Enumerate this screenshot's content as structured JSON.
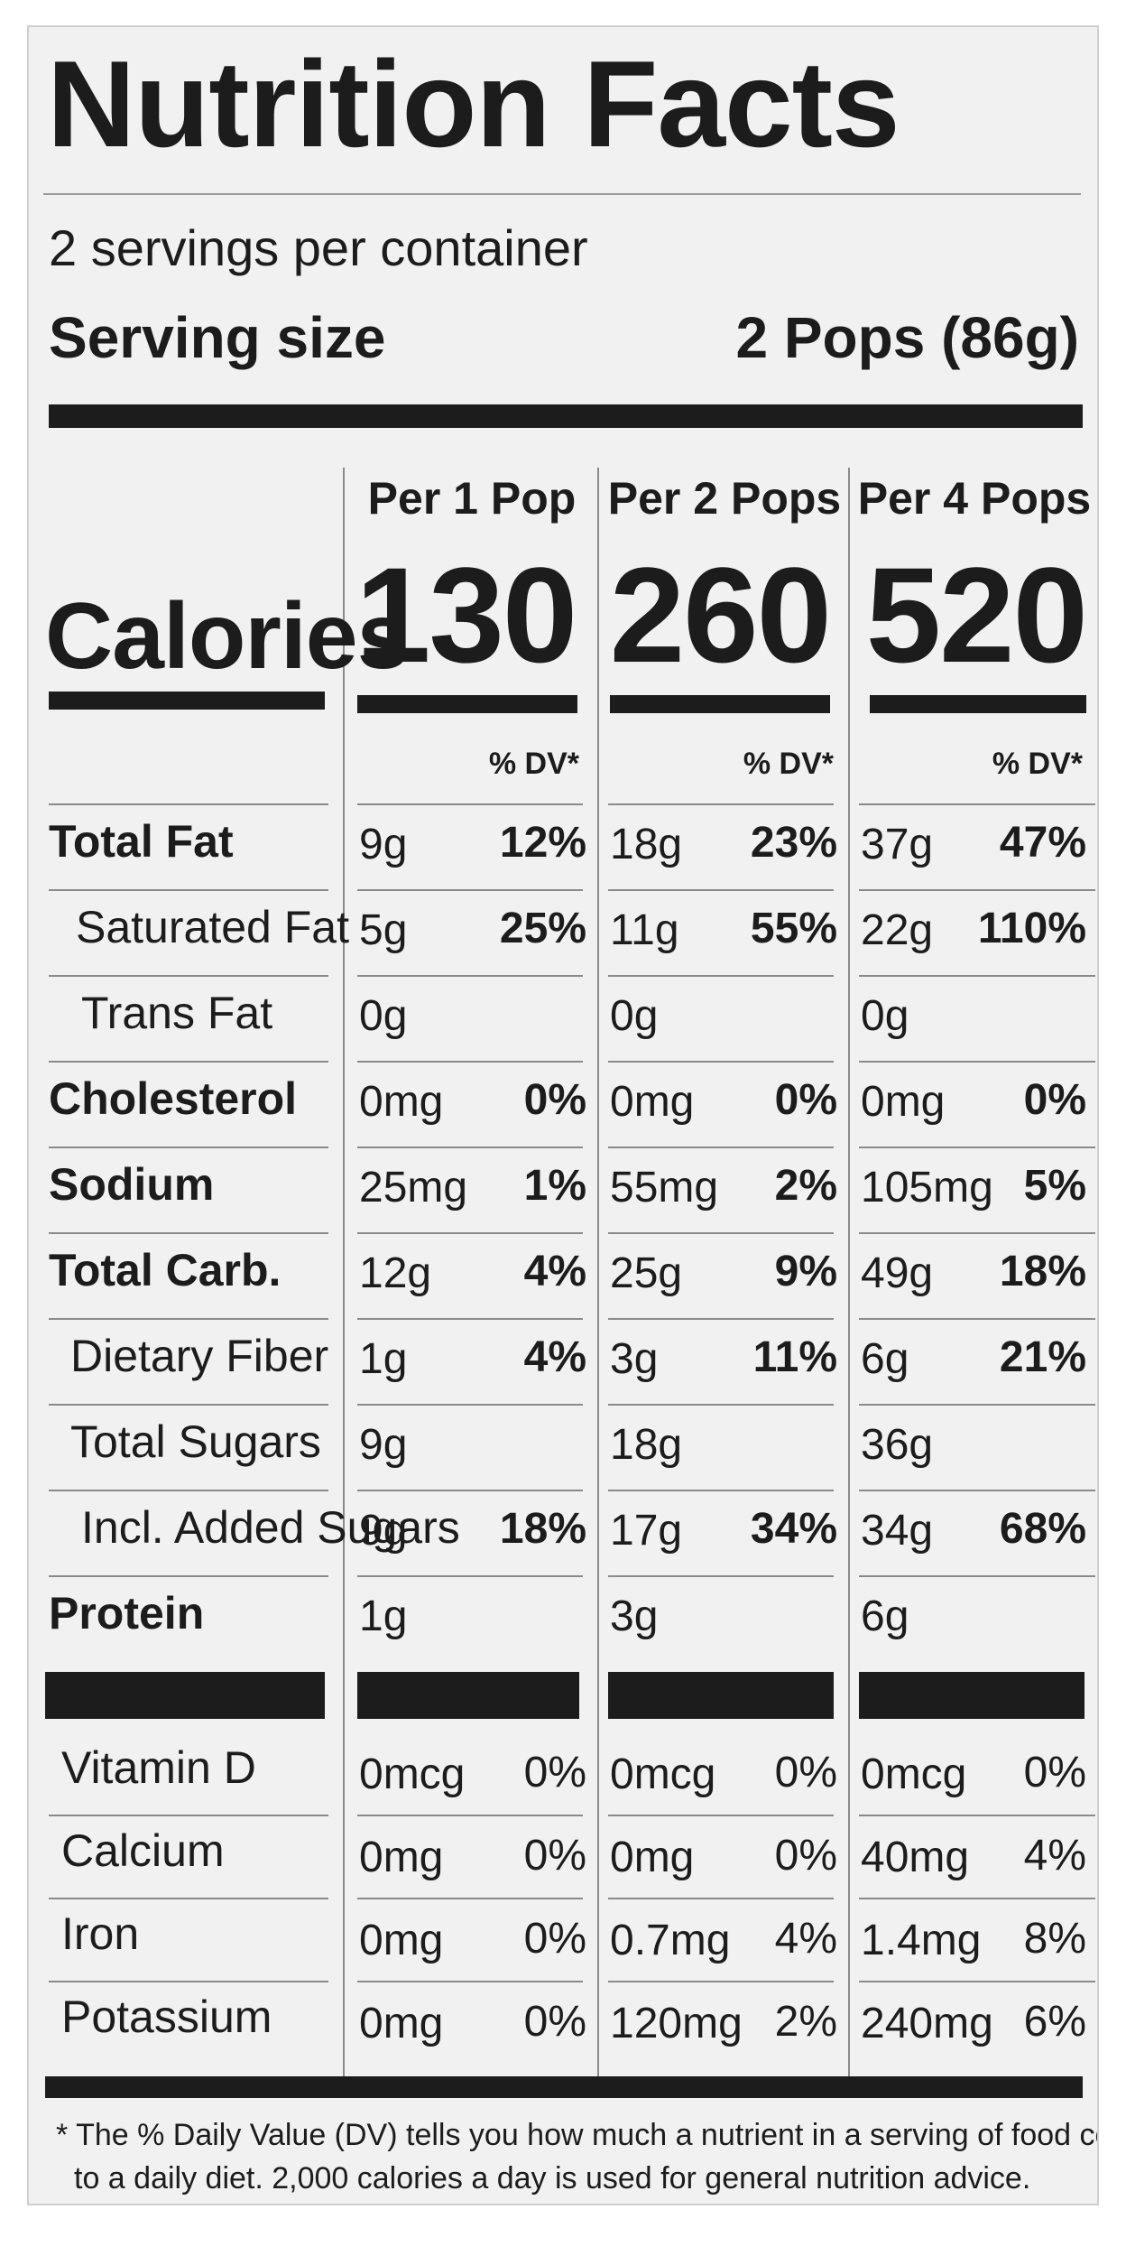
{
  "title": "Nutrition Facts",
  "servings_per_container": "2 servings per container",
  "serving_size": {
    "label": "Serving size",
    "value": "2 Pops (86g)"
  },
  "calories_label": "Calories",
  "columns": [
    {
      "header": "Per 1 Pop",
      "calories": "130",
      "dv_header": "% DV*"
    },
    {
      "header": "Per 2 Pops",
      "calories": "260",
      "dv_header": "% DV*"
    },
    {
      "header": "Per 4 Pops",
      "calories": "520",
      "dv_header": "% DV*"
    }
  ],
  "nutrients": [
    {
      "name": "Total Fat",
      "values": [
        {
          "amount": "9g",
          "dv": "12%"
        },
        {
          "amount": "18g",
          "dv": "23%"
        },
        {
          "amount": "37g",
          "dv": "47%"
        }
      ]
    },
    {
      "name": "Saturated Fat",
      "values": [
        {
          "amount": "5g",
          "dv": "25%"
        },
        {
          "amount": "11g",
          "dv": "55%"
        },
        {
          "amount": "22g",
          "dv": "110%"
        }
      ]
    },
    {
      "name": "Trans Fat",
      "values": [
        {
          "amount": "0g",
          "dv": ""
        },
        {
          "amount": "0g",
          "dv": ""
        },
        {
          "amount": "0g",
          "dv": ""
        }
      ]
    },
    {
      "name": "Cholesterol",
      "values": [
        {
          "amount": "0mg",
          "dv": "0%"
        },
        {
          "amount": "0mg",
          "dv": "0%"
        },
        {
          "amount": "0mg",
          "dv": "0%"
        }
      ]
    },
    {
      "name": "Sodium",
      "values": [
        {
          "amount": "25mg",
          "dv": "1%"
        },
        {
          "amount": "55mg",
          "dv": "2%"
        },
        {
          "amount": "105mg",
          "dv": "5%"
        }
      ]
    },
    {
      "name": "Total Carb.",
      "values": [
        {
          "amount": "12g",
          "dv": "4%"
        },
        {
          "amount": "25g",
          "dv": "9%"
        },
        {
          "amount": "49g",
          "dv": "18%"
        }
      ]
    },
    {
      "name": "Dietary Fiber",
      "values": [
        {
          "amount": "1g",
          "dv": "4%"
        },
        {
          "amount": "3g",
          "dv": "11%"
        },
        {
          "amount": "6g",
          "dv": "21%"
        }
      ]
    },
    {
      "name": "Total Sugars",
      "values": [
        {
          "amount": "9g",
          "dv": ""
        },
        {
          "amount": "18g",
          "dv": ""
        },
        {
          "amount": "36g",
          "dv": ""
        }
      ]
    },
    {
      "name": "Incl. Added Sugars",
      "values": [
        {
          "amount": "9g",
          "dv": "18%"
        },
        {
          "amount": "17g",
          "dv": "34%"
        },
        {
          "amount": "34g",
          "dv": "68%"
        }
      ]
    },
    {
      "name": "Protein",
      "values": [
        {
          "amount": "1g",
          "dv": ""
        },
        {
          "amount": "3g",
          "dv": ""
        },
        {
          "amount": "6g",
          "dv": ""
        }
      ]
    }
  ],
  "vitamins": [
    {
      "name": "Vitamin D",
      "values": [
        {
          "amount": "0mcg",
          "dv": "0%"
        },
        {
          "amount": "0mcg",
          "dv": "0%"
        },
        {
          "amount": "0mcg",
          "dv": "0%"
        }
      ]
    },
    {
      "name": "Calcium",
      "values": [
        {
          "amount": "0mg",
          "dv": "0%"
        },
        {
          "amount": "0mg",
          "dv": "0%"
        },
        {
          "amount": "40mg",
          "dv": "4%"
        }
      ]
    },
    {
      "name": "Iron",
      "values": [
        {
          "amount": "0mg",
          "dv": "0%"
        },
        {
          "amount": "0.7mg",
          "dv": "4%"
        },
        {
          "amount": "1.4mg",
          "dv": "8%"
        }
      ]
    },
    {
      "name": "Potassium",
      "values": [
        {
          "amount": "0mg",
          "dv": "0%"
        },
        {
          "amount": "120mg",
          "dv": "2%"
        },
        {
          "amount": "240mg",
          "dv": "6%"
        }
      ]
    }
  ],
  "footnote": {
    "line1": "* The % Daily Value (DV) tells you how much a nutrient in a serving of food contributes",
    "line2": "to a daily diet. 2,000 calories a day is used for general nutrition advice."
  }
}
